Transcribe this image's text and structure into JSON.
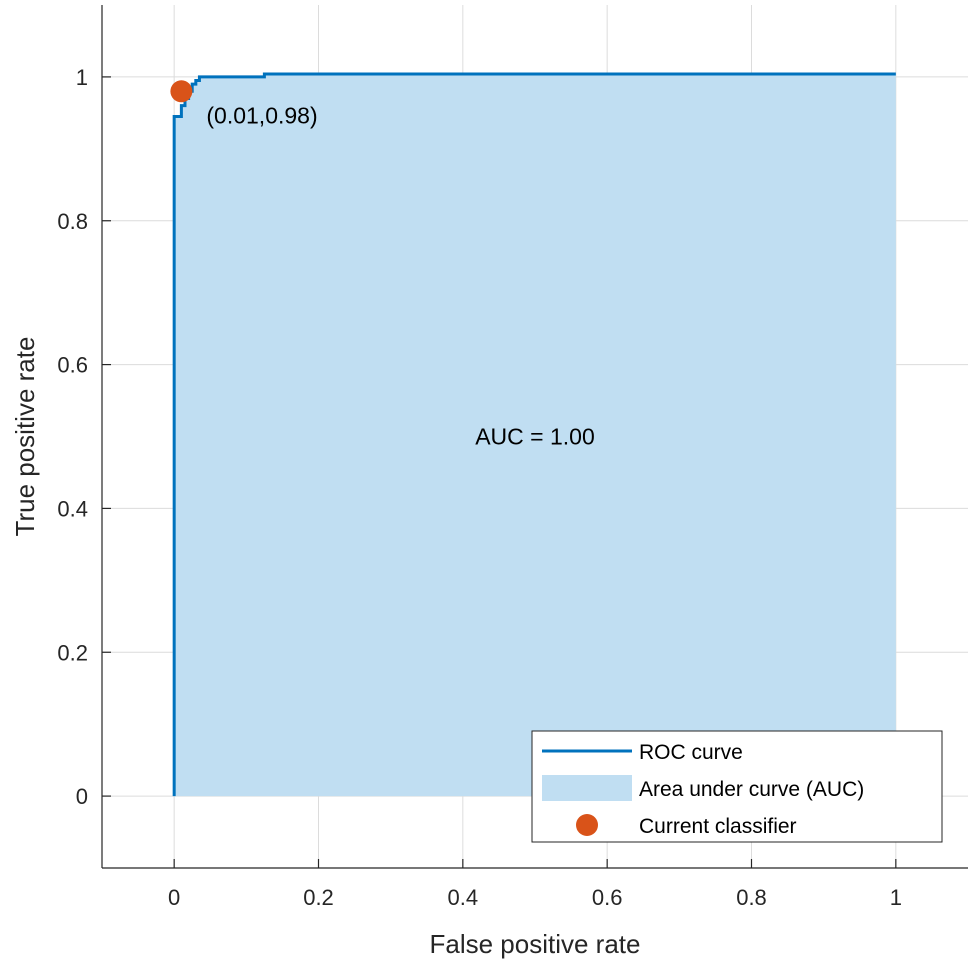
{
  "chart_data": {
    "type": "area",
    "title": "",
    "xlabel": "False positive rate",
    "ylabel": "True positive rate",
    "xlim": [
      -0.1,
      1.1
    ],
    "ylim": [
      -0.1,
      1.1
    ],
    "xticks": [
      0,
      0.2,
      0.4,
      0.6,
      0.8,
      1
    ],
    "yticks": [
      0,
      0.2,
      0.4,
      0.6,
      0.8,
      1
    ],
    "xtick_labels": [
      "0",
      "0.2",
      "0.4",
      "0.6",
      "0.8",
      "1"
    ],
    "ytick_labels": [
      "0",
      "0.2",
      "0.4",
      "0.6",
      "0.8",
      "1"
    ],
    "grid": true,
    "legend_position": "bottom-right",
    "series": [
      {
        "name": "ROC curve",
        "color": "#0072BD",
        "x": [
          0,
          0,
          0.01,
          0.01,
          0.015,
          0.015,
          0.02,
          0.02,
          0.025,
          0.025,
          0.03,
          0.03,
          0.035,
          0.035,
          0.125,
          0.125,
          1
        ],
        "y": [
          0,
          0.945,
          0.945,
          0.96,
          0.96,
          0.97,
          0.97,
          0.98,
          0.98,
          0.99,
          0.99,
          0.995,
          0.995,
          1.0,
          1.0,
          1.004,
          1.004
        ]
      }
    ],
    "area": {
      "name": "Area under curve (AUC)",
      "color": "#C0DEF2"
    },
    "point": {
      "name": "Current classifier",
      "x": 0.01,
      "y": 0.98,
      "color": "#D95319"
    },
    "annotations": {
      "point_label": "(0.01,0.98)",
      "auc_label": "AUC = 1.00"
    }
  }
}
